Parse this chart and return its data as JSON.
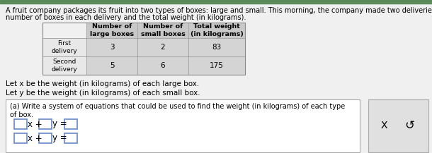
{
  "title_line1": "A fruit company packages its fruit into two types of boxes: large and small. This morning, the company made two deliveries. The table below shows the",
  "title_line2": "number of boxes in each delivery and the total weight (in kilograms).",
  "col0_header": "",
  "col1_header": "Number of\nlarge boxes",
  "col2_header": "Number of\nsmall boxes",
  "col3_header": "Total weight\n(in kilograms)",
  "row1_label": "First\ndelivery",
  "row2_label": "Second\ndelivery",
  "row1_vals": [
    "3",
    "2",
    "83"
  ],
  "row2_vals": [
    "5",
    "6",
    "175"
  ],
  "let_x": "Let x be the weight (in kilograms) of each large box.",
  "let_y": "Let y be the weight (in kilograms) of each small box.",
  "part_a_text1": "(a) Write a system of equations that could be used to find the weight (in kilograms) of each type",
  "part_a_text2": "of box.",
  "bg_color": "#f0f0f0",
  "white": "#ffffff",
  "table_header_bg": "#c8c8c8",
  "table_data_bg": "#d4d4d4",
  "table_row_label_bg": "#e8e8e8",
  "part_a_bg": "#efefef",
  "green_bar": "#5a8a5a",
  "input_border": "#6688cc",
  "x_btn_bg": "#e0e0e0",
  "font_sz_title": 7.0,
  "font_sz_table_hdr": 6.8,
  "font_sz_table_data": 7.5,
  "font_sz_body": 7.5,
  "font_sz_eq": 8.5
}
